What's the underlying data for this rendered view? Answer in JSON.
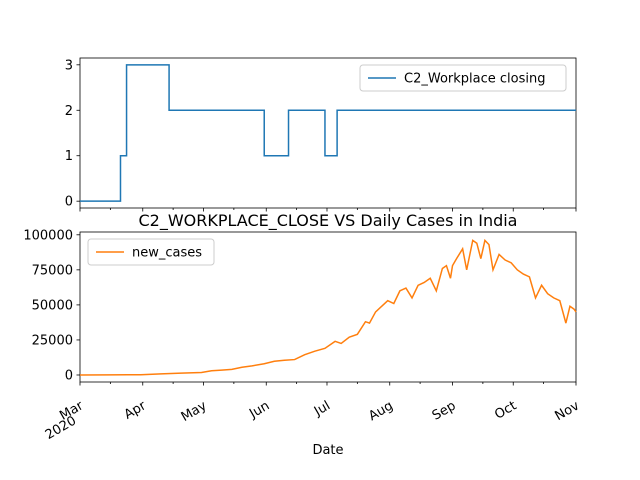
{
  "chart_data": [
    {
      "type": "line",
      "title": "",
      "xlabel": "",
      "ylabel": "",
      "x_range": [
        "2020-03-01",
        "2020-11-01"
      ],
      "ylim": [
        -0.15,
        3.15
      ],
      "yticks": [
        "0",
        "1",
        "2",
        "3"
      ],
      "grid": false,
      "legend": "upper right",
      "series": [
        {
          "name": "C2_Workplace closing",
          "color": "#1f77b4",
          "points": [
            [
              "2020-03-01",
              0
            ],
            [
              "2020-03-21",
              0
            ],
            [
              "2020-03-21",
              1
            ],
            [
              "2020-03-24",
              1
            ],
            [
              "2020-03-24",
              3
            ],
            [
              "2020-04-14",
              3
            ],
            [
              "2020-04-14",
              2
            ],
            [
              "2020-05-31",
              2
            ],
            [
              "2020-05-31",
              1
            ],
            [
              "2020-06-12",
              1
            ],
            [
              "2020-06-12",
              2
            ],
            [
              "2020-06-30",
              2
            ],
            [
              "2020-06-30",
              1
            ],
            [
              "2020-07-06",
              1
            ],
            [
              "2020-07-06",
              2
            ],
            [
              "2020-11-01",
              2
            ]
          ]
        }
      ]
    },
    {
      "type": "line",
      "title": "C2_WORKPLACE_CLOSE VS Daily Cases in India",
      "xlabel": "Date",
      "ylabel": "",
      "x_range": [
        "2020-03-01",
        "2020-11-01"
      ],
      "x_tick_labels": [
        [
          "Mar",
          "2020"
        ],
        [
          "Apr"
        ],
        [
          "May"
        ],
        [
          "Jun"
        ],
        [
          "Jul"
        ],
        [
          "Aug"
        ],
        [
          "Sep"
        ],
        [
          "Oct"
        ],
        [
          "Nov"
        ]
      ],
      "ylim": [
        -5000,
        102000
      ],
      "yticks": [
        "0",
        "25000",
        "50000",
        "75000",
        "100000"
      ],
      "grid": false,
      "legend": "upper left",
      "series": [
        {
          "name": "new_cases",
          "color": "#ff7f0e",
          "points": [
            [
              "2020-03-01",
              0
            ],
            [
              "2020-03-15",
              50
            ],
            [
              "2020-03-31",
              200
            ],
            [
              "2020-04-10",
              800
            ],
            [
              "2020-04-20",
              1300
            ],
            [
              "2020-04-30",
              1800
            ],
            [
              "2020-05-05",
              3000
            ],
            [
              "2020-05-10",
              3500
            ],
            [
              "2020-05-15",
              4000
            ],
            [
              "2020-05-20",
              5500
            ],
            [
              "2020-05-25",
              6500
            ],
            [
              "2020-05-31",
              8000
            ],
            [
              "2020-06-05",
              9800
            ],
            [
              "2020-06-10",
              10500
            ],
            [
              "2020-06-15",
              11000
            ],
            [
              "2020-06-20",
              14500
            ],
            [
              "2020-06-25",
              17000
            ],
            [
              "2020-06-30",
              19000
            ],
            [
              "2020-07-05",
              24000
            ],
            [
              "2020-07-08",
              22500
            ],
            [
              "2020-07-12",
              27000
            ],
            [
              "2020-07-16",
              29000
            ],
            [
              "2020-07-20",
              38000
            ],
            [
              "2020-07-22",
              37000
            ],
            [
              "2020-07-25",
              45000
            ],
            [
              "2020-07-28",
              49000
            ],
            [
              "2020-07-31",
              53000
            ],
            [
              "2020-08-03",
              51000
            ],
            [
              "2020-08-06",
              60000
            ],
            [
              "2020-08-09",
              62000
            ],
            [
              "2020-08-12",
              55000
            ],
            [
              "2020-08-15",
              64000
            ],
            [
              "2020-08-18",
              66000
            ],
            [
              "2020-08-21",
              69000
            ],
            [
              "2020-08-24",
              60000
            ],
            [
              "2020-08-27",
              76000
            ],
            [
              "2020-08-29",
              78000
            ],
            [
              "2020-08-31",
              69000
            ],
            [
              "2020-09-01",
              78000
            ],
            [
              "2020-09-03",
              83000
            ],
            [
              "2020-09-06",
              90000
            ],
            [
              "2020-09-08",
              75000
            ],
            [
              "2020-09-11",
              96000
            ],
            [
              "2020-09-13",
              94000
            ],
            [
              "2020-09-15",
              83000
            ],
            [
              "2020-09-17",
              96000
            ],
            [
              "2020-09-19",
              93000
            ],
            [
              "2020-09-21",
              75000
            ],
            [
              "2020-09-24",
              86000
            ],
            [
              "2020-09-27",
              82000
            ],
            [
              "2020-09-30",
              80000
            ],
            [
              "2020-10-03",
              75000
            ],
            [
              "2020-10-06",
              72000
            ],
            [
              "2020-10-09",
              70000
            ],
            [
              "2020-10-12",
              55000
            ],
            [
              "2020-10-15",
              64000
            ],
            [
              "2020-10-18",
              58000
            ],
            [
              "2020-10-21",
              55000
            ],
            [
              "2020-10-24",
              53000
            ],
            [
              "2020-10-27",
              37000
            ],
            [
              "2020-10-29",
              49000
            ],
            [
              "2020-10-31",
              47000
            ],
            [
              "2020-11-01",
              45000
            ]
          ]
        }
      ]
    }
  ]
}
